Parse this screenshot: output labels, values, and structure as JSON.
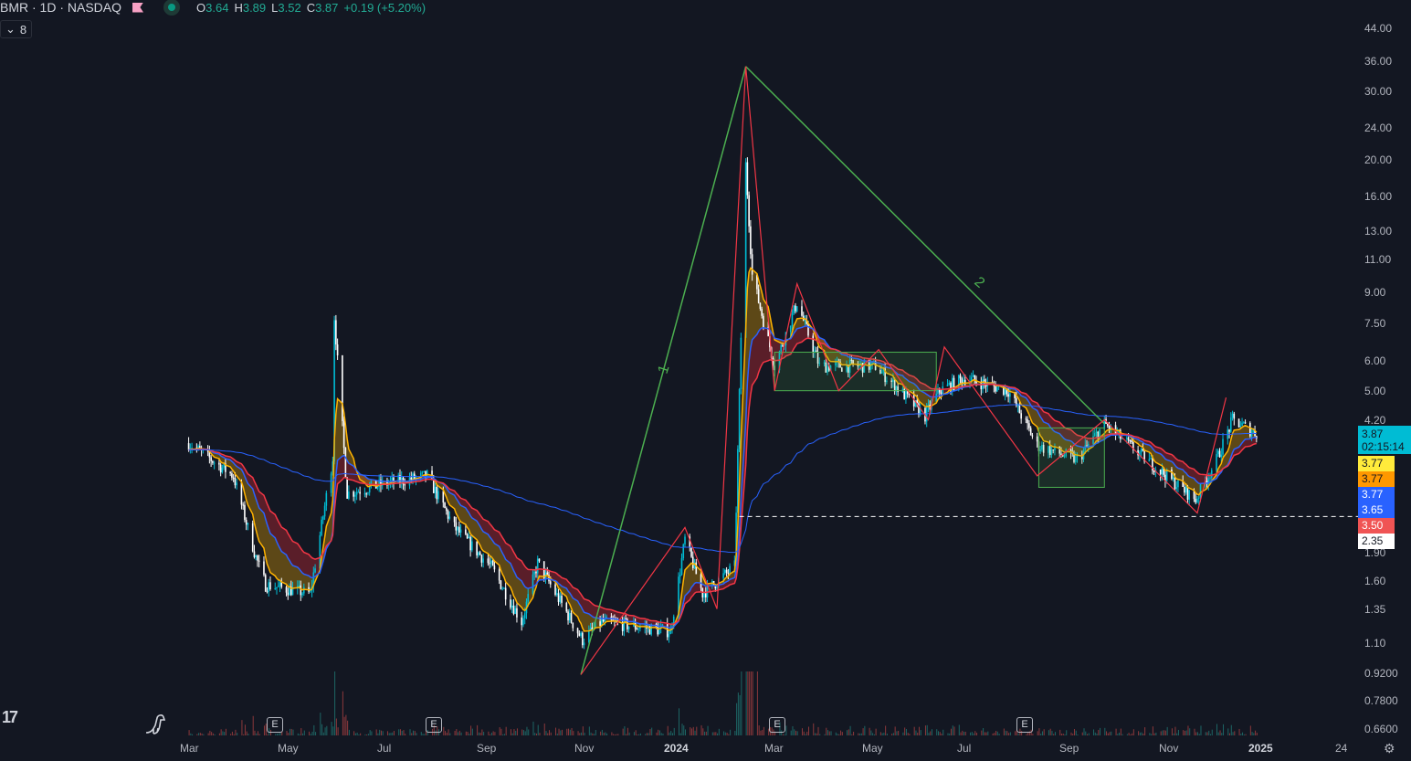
{
  "header": {
    "symbol": "BMR · 1D · NASDAQ",
    "open_label": "O",
    "open": "3.64",
    "high_label": "H",
    "high": "3.89",
    "low_label": "L",
    "low": "3.52",
    "close_label": "C",
    "close": "3.87",
    "change": "+0.19 (+5.20%)",
    "market_status": "open"
  },
  "indicators_toggle": {
    "icon": "chevron-down-icon",
    "count": "8"
  },
  "price_axis": [
    "44.00",
    "36.00",
    "30.00",
    "24.00",
    "20.00",
    "16.00",
    "13.00",
    "11.00",
    "9.00",
    "7.50",
    "6.00",
    "5.00",
    "4.20",
    "1.90",
    "1.60",
    "1.35",
    "1.10",
    "0.9200",
    "0.7800",
    "0.6600"
  ],
  "price_tags": [
    {
      "value": "3.87",
      "sub": "02:15:14",
      "color": "#00bcd4"
    },
    {
      "value": "3.77",
      "color": "#ffeb3b"
    },
    {
      "value": "3.77",
      "color": "#ff9800"
    },
    {
      "value": "3.77",
      "color": "#2962ff"
    },
    {
      "value": "3.65",
      "color": "#2962ff"
    },
    {
      "value": "3.50",
      "color": "#f05454"
    },
    {
      "value": "2.35",
      "color": "#ffffff"
    }
  ],
  "time_axis": [
    "Mar",
    "May",
    "Jul",
    "Sep",
    "Nov",
    "2024",
    "Mar",
    "May",
    "Jul",
    "Sep",
    "Nov",
    "2025",
    "24"
  ],
  "earnings_markers": [
    "E",
    "E",
    "E",
    "E"
  ],
  "drawings": {
    "wave_labels": [
      "1",
      "2"
    ],
    "dashed_level": 2.35
  },
  "chart_data": {
    "type": "candlestick",
    "scale": "log",
    "ylim": [
      0.66,
      44
    ],
    "xlim": [
      "2023-01-20",
      "2025-02-10"
    ],
    "close_path": [
      [
        "2023-03-01",
        3.65
      ],
      [
        "2023-03-29",
        3.0
      ],
      [
        "2023-04-12",
        1.84
      ],
      [
        "2023-04-18",
        1.56
      ],
      [
        "2023-05-16",
        1.48
      ],
      [
        "2023-05-30",
        3.35
      ],
      [
        "2023-05-31",
        7.8
      ],
      [
        "2023-06-08",
        2.7
      ],
      [
        "2023-06-30",
        2.85
      ],
      [
        "2023-07-28",
        3.0
      ],
      [
        "2023-08-14",
        2.2
      ],
      [
        "2023-09-06",
        1.74
      ],
      [
        "2023-09-25",
        1.25
      ],
      [
        "2023-10-05",
        1.78
      ],
      [
        "2023-11-02",
        1.12
      ],
      [
        "2023-11-14",
        1.25
      ],
      [
        "2023-12-27",
        1.18
      ],
      [
        "2024-01-05",
        2.05
      ],
      [
        "2024-01-16",
        1.48
      ],
      [
        "2024-02-05",
        1.74
      ],
      [
        "2024-02-12",
        19.4
      ],
      [
        "2024-02-16",
        10.0
      ],
      [
        "2024-03-01",
        5.8
      ],
      [
        "2024-03-15",
        8.5
      ],
      [
        "2024-03-29",
        5.8
      ],
      [
        "2024-05-03",
        5.8
      ],
      [
        "2024-06-03",
        4.3
      ],
      [
        "2024-06-12",
        5.0
      ],
      [
        "2024-06-28",
        5.4
      ],
      [
        "2024-07-25",
        5.0
      ],
      [
        "2024-08-12",
        3.6
      ],
      [
        "2024-09-06",
        3.3
      ],
      [
        "2024-09-23",
        4.1
      ],
      [
        "2024-10-16",
        3.4
      ],
      [
        "2024-11-19",
        2.6
      ],
      [
        "2024-12-02",
        3.3
      ],
      [
        "2024-12-12",
        4.2
      ],
      [
        "2024-12-27",
        3.87
      ]
    ],
    "trend_lines": [
      [
        [
          "2023-11-01",
          0.91
        ],
        [
          "2024-02-12",
          35
        ]
      ],
      [
        [
          "2024-02-12",
          35
        ],
        [
          "2024-09-23",
          4.1
        ]
      ]
    ],
    "boxes": [
      [
        [
          "2024-03-01",
          5.0
        ],
        [
          "2024-06-10",
          6.3
        ]
      ],
      [
        [
          "2024-08-13",
          2.8
        ],
        [
          "2024-09-23",
          4.0
        ]
      ]
    ],
    "series_colors": {
      "up": "#00bcd4",
      "down": "#ffffff",
      "ema_fast": "#ffb300",
      "ema_mid": "#2962ff",
      "ema_slow": "#f23645",
      "ma_long": "#2962ff"
    }
  }
}
